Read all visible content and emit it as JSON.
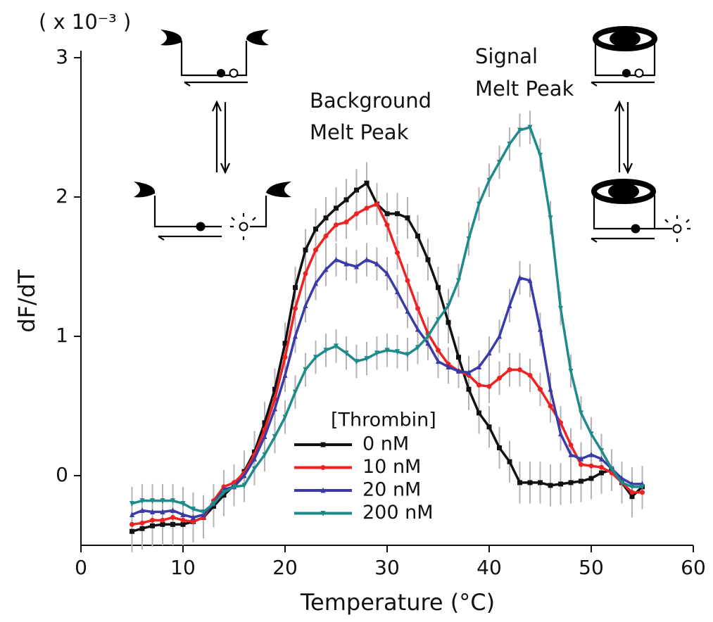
{
  "chart_data": {
    "type": "line",
    "xlabel": "Temperature (°C)",
    "ylabel": "dF/dT",
    "y_multiplier_label": "( x 10⁻³ )",
    "annotations": [
      [
        "Background",
        "Melt Peak"
      ],
      [
        "Signal",
        "Melt Peak"
      ]
    ],
    "legend_title": "[Thrombin]",
    "xlim": [
      0,
      60
    ],
    "xticks": [
      0,
      10,
      20,
      30,
      40,
      50,
      60
    ],
    "ylim": [
      -0.5,
      3
    ],
    "yticks": [
      0,
      1,
      2,
      3
    ],
    "error_color": "#b8b0b4",
    "x": [
      5,
      6,
      7,
      8,
      9,
      10,
      11,
      12,
      13,
      14,
      15,
      16,
      17,
      18,
      19,
      20,
      21,
      22,
      23,
      24,
      25,
      26,
      27,
      28,
      29,
      30,
      31,
      32,
      33,
      34,
      35,
      36,
      37,
      38,
      39,
      40,
      41,
      42,
      43,
      44,
      45,
      46,
      47,
      48,
      49,
      50,
      51,
      52,
      53,
      54,
      55
    ],
    "series": [
      {
        "name": "0 nM",
        "color": "#111111",
        "marker": "square",
        "error": 0.15,
        "values": [
          -0.4,
          -0.38,
          -0.36,
          -0.35,
          -0.35,
          -0.35,
          -0.33,
          -0.3,
          -0.22,
          -0.14,
          -0.07,
          0.03,
          0.17,
          0.38,
          0.62,
          0.95,
          1.35,
          1.62,
          1.77,
          1.85,
          1.92,
          1.98,
          2.05,
          2.1,
          1.95,
          1.88,
          1.88,
          1.85,
          1.72,
          1.55,
          1.35,
          1.1,
          0.85,
          0.62,
          0.45,
          0.35,
          0.2,
          0.1,
          -0.05,
          -0.05,
          -0.05,
          -0.07,
          -0.06,
          -0.05,
          -0.04,
          -0.02,
          0.02,
          0.04,
          -0.05,
          -0.15,
          -0.08
        ]
      },
      {
        "name": "10 nM",
        "color": "#ee2222",
        "marker": "circle",
        "error": 0.12,
        "values": [
          -0.35,
          -0.34,
          -0.32,
          -0.32,
          -0.3,
          -0.32,
          -0.33,
          -0.3,
          -0.18,
          -0.08,
          -0.05,
          0.02,
          0.15,
          0.33,
          0.55,
          0.85,
          1.2,
          1.45,
          1.62,
          1.72,
          1.8,
          1.82,
          1.88,
          1.92,
          1.95,
          1.8,
          1.6,
          1.4,
          1.2,
          1.02,
          0.9,
          0.8,
          0.75,
          0.72,
          0.65,
          0.64,
          0.7,
          0.76,
          0.76,
          0.72,
          0.62,
          0.5,
          0.38,
          0.22,
          0.08,
          0.07,
          0.06,
          0.02,
          -0.05,
          -0.12,
          -0.12
        ]
      },
      {
        "name": "20 nM",
        "color": "#3a3aa8",
        "marker": "triangle-up",
        "error": 0.12,
        "values": [
          -0.28,
          -0.25,
          -0.26,
          -0.26,
          -0.25,
          -0.28,
          -0.3,
          -0.28,
          -0.2,
          -0.1,
          -0.08,
          0.0,
          0.12,
          0.28,
          0.48,
          0.72,
          1.0,
          1.22,
          1.38,
          1.48,
          1.55,
          1.52,
          1.5,
          1.55,
          1.52,
          1.45,
          1.32,
          1.18,
          1.05,
          0.95,
          0.82,
          0.78,
          0.75,
          0.74,
          0.78,
          0.88,
          1.0,
          1.22,
          1.42,
          1.4,
          1.05,
          0.62,
          0.3,
          0.15,
          0.12,
          0.15,
          0.12,
          0.05,
          -0.02,
          -0.06,
          -0.06
        ]
      },
      {
        "name": "200 nM",
        "color": "#1f8a8a",
        "marker": "triangle-down",
        "error": 0.12,
        "values": [
          -0.2,
          -0.18,
          -0.18,
          -0.18,
          -0.18,
          -0.2,
          -0.24,
          -0.26,
          -0.2,
          -0.12,
          -0.08,
          -0.07,
          0.05,
          0.15,
          0.28,
          0.42,
          0.6,
          0.76,
          0.85,
          0.9,
          0.93,
          0.88,
          0.82,
          0.84,
          0.88,
          0.9,
          0.89,
          0.87,
          0.92,
          1.0,
          1.12,
          1.22,
          1.4,
          1.7,
          1.95,
          2.12,
          2.25,
          2.38,
          2.48,
          2.5,
          2.3,
          1.85,
          1.2,
          0.75,
          0.45,
          0.3,
          0.18,
          0.05,
          -0.05,
          -0.08,
          -0.08
        ]
      }
    ]
  }
}
